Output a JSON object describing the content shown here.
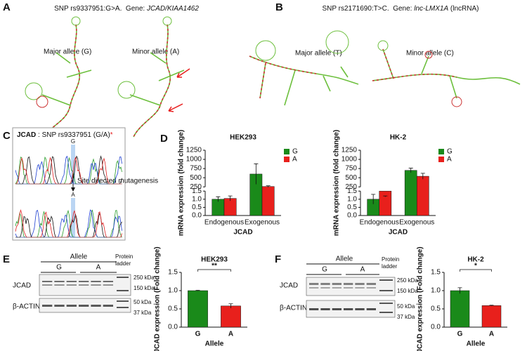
{
  "panel_letters": [
    "A",
    "B",
    "C",
    "D",
    "E",
    "F"
  ],
  "A": {
    "title": "SNP rs9337951:G>A.  Gene: ",
    "gene": "JCAD/KIAA1462",
    "major": "Major allele (G)",
    "minor": "Minor allele (A)"
  },
  "B": {
    "title": "SNP rs2171690:T>C.  Gene: ",
    "gene": "lnc-LMX1A",
    "gene_type": " (lncRNA)",
    "major": "Major allele (T)",
    "minor": "Minor allele (C)"
  },
  "C": {
    "gene": "JCAD",
    "title": " : SNP rs9337951 (G/A)",
    "star": "*",
    "base_top": "G",
    "base_bottom": "A",
    "step": "Site directed mutagenesis"
  },
  "E": {
    "allele": "Allele",
    "lanes": [
      "G",
      "A"
    ],
    "ladder": [
      "Protein",
      "ladder"
    ],
    "rows": [
      "JCAD",
      "β-ACTIN"
    ],
    "markers": [
      "250 kDa",
      "150 kDa",
      "50 kDa",
      "37 kDa"
    ]
  },
  "F": {
    "allele": "Allele",
    "lanes": [
      "G",
      "A"
    ],
    "ladder": [
      "Protein",
      "ladder"
    ],
    "rows": [
      "JCAD",
      "β-ACTIN"
    ],
    "markers": [
      "250 kDa",
      "150 kDa",
      "50 kDa",
      "37 kDa"
    ]
  },
  "chart_data": [
    {
      "type": "bar",
      "title": "HEK293",
      "categories": [
        "Endogenous",
        "Exogenous"
      ],
      "series": [
        {
          "name": "G",
          "color": "#1a8a1a",
          "values": [
            1.0,
            600
          ],
          "errors": [
            0.15,
            280
          ]
        },
        {
          "name": "A",
          "color": "#e8201c",
          "values": [
            1.05,
            260
          ],
          "errors": [
            0.15,
            20
          ]
        }
      ],
      "y_segments": [
        {
          "ylim": [
            0,
            1.5
          ],
          "yticks": [
            {
              "value": 0,
              "label": "0.0"
            },
            0.5,
            {
              "value": 1,
              "label": "1.0"
            },
            1.5
          ]
        },
        {
          "ylim": [
            250,
            1250
          ],
          "yticks": [
            250,
            500,
            750,
            1000,
            1250
          ]
        }
      ],
      "ylabel": "mRNA expression (fold change)",
      "xlabel": "JCAD",
      "legend": "upper right"
    },
    {
      "type": "bar",
      "title": "HK-2",
      "categories": [
        "Endogenous",
        "Exogenous"
      ],
      "series": [
        {
          "name": "G",
          "color": "#1a8a1a",
          "values": [
            1.0,
            700
          ],
          "errors": [
            0.3,
            60
          ]
        },
        {
          "name": "A",
          "color": "#e8201c",
          "values": [
            1.5,
            540
          ],
          "errors": [
            0.35,
            80
          ]
        }
      ],
      "y_segments": [
        {
          "ylim": [
            0,
            1.5
          ],
          "yticks": [
            {
              "value": 0,
              "label": "0.0"
            },
            0.5,
            {
              "value": 1,
              "label": "1.0"
            },
            1.5
          ]
        },
        {
          "ylim": [
            250,
            1250
          ],
          "yticks": [
            250,
            500,
            750,
            1000,
            1250
          ]
        }
      ],
      "ylabel": "mRNA expression (fold change)",
      "xlabel": "JCAD",
      "legend": "upper right"
    },
    {
      "type": "bar",
      "title": "HEK293",
      "categories": [
        "G",
        "A"
      ],
      "values": [
        1.0,
        0.58
      ],
      "errors": [
        0.01,
        0.06
      ],
      "colors": [
        "#1a8a1a",
        "#e8201c"
      ],
      "significance": "**",
      "ylim": [
        0,
        1.5
      ],
      "yticks": [
        {
          "value": 0,
          "label": "0.0"
        },
        0.5,
        {
          "value": 1,
          "label": "1.0"
        },
        1.5
      ],
      "ylabel": "JCAD expression (Fold change)",
      "xlabel": "Allele"
    },
    {
      "type": "bar",
      "title": "HK-2",
      "categories": [
        "G",
        "A"
      ],
      "values": [
        1.0,
        0.59
      ],
      "errors": [
        0.08,
        0.01
      ],
      "colors": [
        "#1a8a1a",
        "#e8201c"
      ],
      "significance": "*",
      "ylim": [
        0,
        1.5
      ],
      "yticks": [
        {
          "value": 0,
          "label": "0.0"
        },
        0.5,
        {
          "value": 1,
          "label": "1.0"
        },
        1.5
      ],
      "ylabel": "JCAD expression (Fold change)",
      "xlabel": "Allele"
    }
  ]
}
